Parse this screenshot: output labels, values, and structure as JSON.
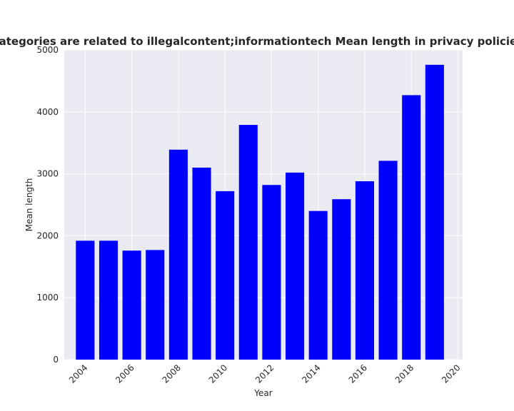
{
  "chart_data": {
    "type": "bar",
    "title": "When categories are related to illegalcontent;informationtech Mean length in privacy policies by year",
    "xlabel": "Year",
    "ylabel": "Mean length",
    "x": [
      2004,
      2005,
      2006,
      2007,
      2008,
      2009,
      2010,
      2011,
      2012,
      2013,
      2014,
      2015,
      2016,
      2017,
      2018,
      2019
    ],
    "values": [
      1920,
      1920,
      1760,
      1770,
      3390,
      3100,
      2720,
      3790,
      2820,
      3020,
      2400,
      2590,
      2880,
      3210,
      4270,
      4760
    ],
    "xticks": [
      "2004",
      "2006",
      "2008",
      "2010",
      "2012",
      "2014",
      "2016",
      "2018",
      "2020"
    ],
    "yticks": [
      "0",
      "1000",
      "2000",
      "3000",
      "4000",
      "5000"
    ],
    "ylim": [
      0,
      5000
    ],
    "xlim": [
      2003.1,
      2020.2
    ],
    "bar_color": "#0000ff",
    "background_color": "#eaeaf2",
    "grid": true,
    "xtick_rotation": 45
  }
}
